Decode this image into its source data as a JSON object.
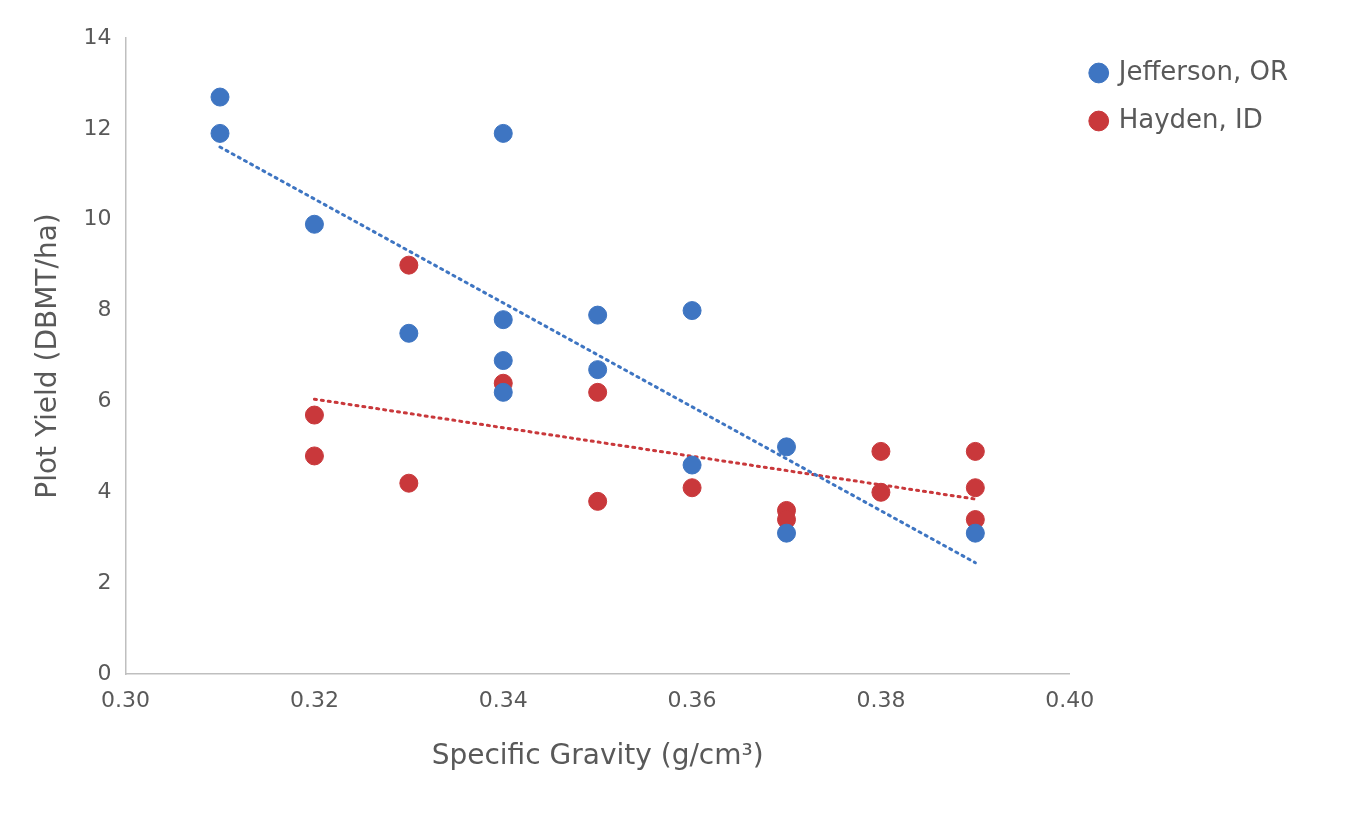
{
  "chart_data": {
    "type": "scatter",
    "xlabel": "Specific Gravity (g/cm³)",
    "ylabel": "Plot Yield (DBMT/ha)",
    "xlim": [
      0.3,
      0.4
    ],
    "xticks": [
      {
        "value": 0.3,
        "label": "0.30"
      },
      {
        "value": 0.32,
        "label": "0.32"
      },
      {
        "value": 0.34,
        "label": "0.34"
      },
      {
        "value": 0.36,
        "label": "0.36"
      },
      {
        "value": 0.38,
        "label": "0.38"
      },
      {
        "value": 0.4,
        "label": "0.40"
      }
    ],
    "ylim": [
      0,
      14
    ],
    "yticks": [
      0,
      2,
      4,
      6,
      8,
      10,
      12,
      14
    ],
    "grid": false,
    "legend": "top right",
    "marker": "circle",
    "series": [
      {
        "name": "Jefferson, OR",
        "color": "#3e75c2",
        "x": [
          0.31,
          0.31,
          0.32,
          0.33,
          0.34,
          0.34,
          0.34,
          0.34,
          0.35,
          0.35,
          0.36,
          0.36,
          0.37,
          0.37,
          0.39
        ],
        "values": [
          12.7,
          11.9,
          9.9,
          7.5,
          11.9,
          7.8,
          6.9,
          6.2,
          7.9,
          6.7,
          8.0,
          4.6,
          5.0,
          3.1,
          3.1
        ]
      },
      {
        "name": "Hayden, ID",
        "color": "#c9383b",
        "x": [
          0.32,
          0.32,
          0.33,
          0.33,
          0.34,
          0.35,
          0.35,
          0.36,
          0.37,
          0.37,
          0.38,
          0.38,
          0.39,
          0.39,
          0.39
        ],
        "values": [
          5.7,
          4.8,
          9.0,
          4.2,
          6.4,
          6.2,
          3.8,
          4.1,
          3.6,
          3.4,
          4.9,
          4.0,
          4.9,
          4.1,
          3.4
        ]
      },
      {
        "type": "line",
        "color": "#3e75c2",
        "line_style": "dotted",
        "marker": "none",
        "x": [
          0.31,
          0.39
        ],
        "values": [
          11.6,
          2.45
        ]
      },
      {
        "type": "line",
        "color": "#c9383b",
        "line_style": "dotted",
        "marker": "none",
        "x": [
          0.32,
          0.39
        ],
        "values": [
          6.05,
          3.85
        ]
      }
    ]
  }
}
